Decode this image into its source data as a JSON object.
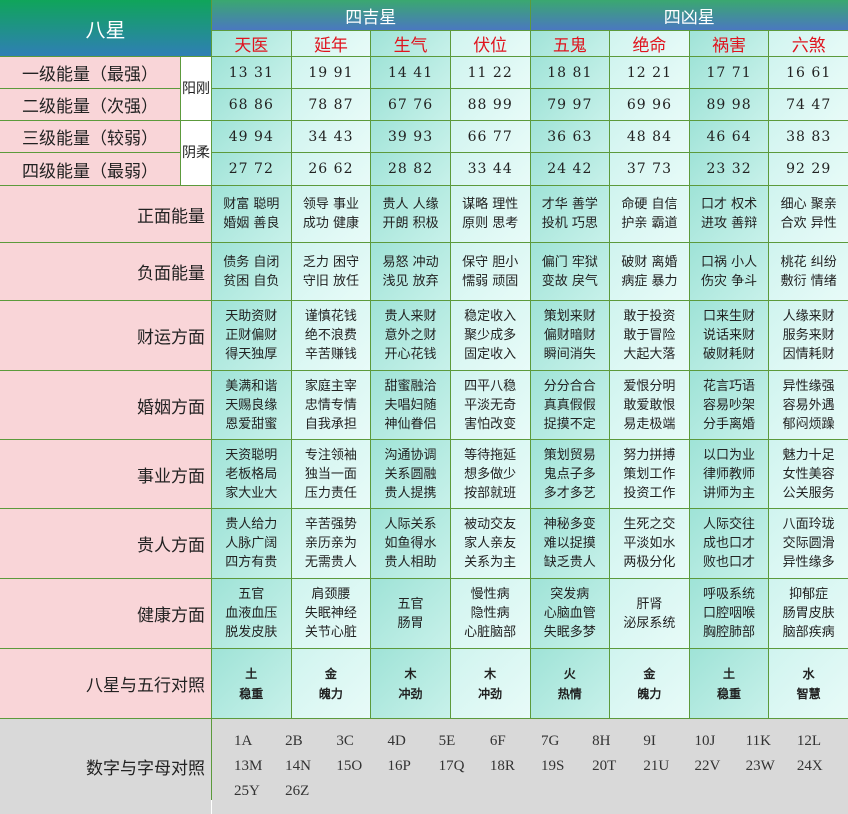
{
  "title": "八星",
  "groups": [
    "四吉星",
    "四凶星"
  ],
  "stars": [
    "天医",
    "延年",
    "生气",
    "伏位",
    "五鬼",
    "绝命",
    "祸害",
    "六煞"
  ],
  "yin_yang": [
    "阳刚",
    "阴柔"
  ],
  "energy": [
    {
      "label": "一级能量（最强）",
      "values": [
        "13 31",
        "19 91",
        "14 41",
        "11 22",
        "18 81",
        "12 21",
        "17 71",
        "16 61"
      ]
    },
    {
      "label": "二级能量（次强）",
      "values": [
        "68 86",
        "78 87",
        "67 76",
        "88 99",
        "79 97",
        "69 96",
        "89 98",
        "74 47"
      ]
    },
    {
      "label": "三级能量（较弱）",
      "values": [
        "49 94",
        "34 43",
        "39 93",
        "66 77",
        "36 63",
        "48 84",
        "46 64",
        "38 83"
      ]
    },
    {
      "label": "四级能量（最弱）",
      "values": [
        "27 72",
        "26 62",
        "28 82",
        "33 44",
        "24 42",
        "37 73",
        "23 32",
        "92 29"
      ]
    }
  ],
  "traits": [
    {
      "label": "正面能量",
      "values": [
        "财富 聪明\n婚姻 善良",
        "领导 事业\n成功 健康",
        "贵人 人缘\n开朗 积极",
        "谋略 理性\n原则 思考",
        "才华 善学\n投机 巧思",
        "命硬 自信\n护亲 霸道",
        "口才 权术\n进攻 善辩",
        "细心 聚亲\n合欢 异性"
      ]
    },
    {
      "label": "负面能量",
      "values": [
        "债务 自闭\n贫困 自负",
        "乏力 困守\n守旧 放任",
        "易怒 冲动\n浅见 放弃",
        "保守 胆小\n懦弱 顽固",
        "偏门 牢狱\n变故 戾气",
        "破财 离婚\n病症 暴力",
        "口祸 小人\n伤灾 争斗",
        "桃花 纠纷\n敷衍 情绪"
      ]
    },
    {
      "label": "财运方面",
      "values": [
        "天助资财\n正财偏财\n得天独厚",
        "谨慎花钱\n绝不浪费\n辛苦赚钱",
        "贵人来财\n意外之财\n开心花钱",
        "稳定收入\n聚少成多\n固定收入",
        "策划来财\n偏财暗财\n瞬间消失",
        "敢于投资\n敢于冒险\n大起大落",
        "口来生财\n说话来财\n破财耗财",
        "人缘来财\n服务来财\n因情耗财"
      ]
    },
    {
      "label": "婚姻方面",
      "values": [
        "美满和谐\n天赐良缘\n恩爱甜蜜",
        "家庭主宰\n忠情专情\n自我承担",
        "甜蜜融洽\n夫唱妇随\n神仙眷侣",
        "四平八稳\n平淡无奇\n害怕改变",
        "分分合合\n真真假假\n捉摸不定",
        "爱恨分明\n敢爱敢恨\n易走极端",
        "花言巧语\n容易吵架\n分手离婚",
        "异性缘强\n容易外遇\n郁闷烦躁"
      ]
    },
    {
      "label": "事业方面",
      "values": [
        "天资聪明\n老板格局\n家大业大",
        "专注领袖\n独当一面\n压力责任",
        "沟通协调\n关系圆融\n贵人提携",
        "等待拖延\n想多做少\n按部就班",
        "策划贸易\n鬼点子多\n多才多艺",
        "努力拼搏\n策划工作\n投资工作",
        "以口为业\n律师教师\n讲师为主",
        "魅力十足\n女性美容\n公关服务"
      ]
    },
    {
      "label": "贵人方面",
      "values": [
        "贵人给力\n人脉广阔\n四方有贵",
        "辛苦强势\n亲历亲为\n无需贵人",
        "人际关系\n如鱼得水\n贵人相助",
        "被动交友\n家人亲友\n关系为主",
        "神秘多变\n难以捉摸\n缺乏贵人",
        "生死之交\n平淡如水\n两极分化",
        "人际交往\n成也口才\n败也口才",
        "八面玲珑\n交际圆滑\n异性缘多"
      ]
    },
    {
      "label": "健康方面",
      "values": [
        "五官\n血液血压\n脱发皮肤",
        "肩颈腰\n失眠神经\n关节心脏",
        "五官\n肠胃",
        "慢性病\n隐性病\n心脏脑部",
        "突发病\n心脑血管\n失眠多梦",
        "肝肾\n泌尿系统",
        "呼吸系统\n口腔咽喉\n胸腔肺部",
        "抑郁症\n肠胃皮肤\n脑部疾病"
      ]
    }
  ],
  "wuxing": {
    "label": "八星与五行对照",
    "values": [
      "土\n稳重",
      "金\n魄力",
      "木\n冲劲",
      "木\n冲劲",
      "火\n热情",
      "金\n魄力",
      "土\n稳重",
      "水\n智慧"
    ]
  },
  "digits": {
    "label": "数字与字母对照",
    "values": [
      "1A",
      "2B",
      "3C",
      "4D",
      "5E",
      "6F",
      "7G",
      "8H",
      "9I",
      "10J",
      "11K",
      "12L",
      "13M",
      "14N",
      "15O",
      "16P",
      "17Q",
      "18R",
      "19S",
      "20T",
      "21U",
      "22V",
      "23W",
      "24X",
      "25Y",
      "26Z"
    ]
  },
  "colors": {
    "border": "#5c9a3c",
    "label_bg": "#f9d5d8",
    "star_text": "#e0141e",
    "teal_dark": "#9fe3d7",
    "teal_light": "#d0f4ef",
    "grey": "#d9d9d9"
  }
}
